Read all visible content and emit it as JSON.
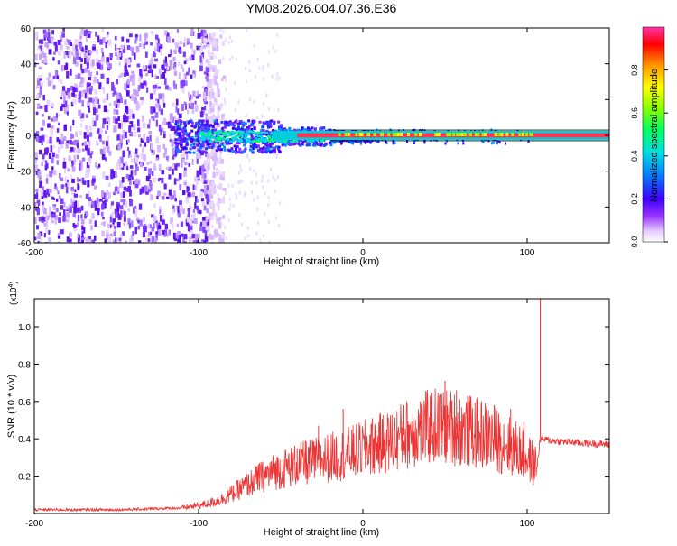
{
  "title": "YM08.2026.004.07.36.E36",
  "chart_data": [
    {
      "type": "heatmap",
      "xlabel": "Height of straight line (km)",
      "ylabel": "Frequency (Hz)",
      "xlim": [
        -200,
        150
      ],
      "ylim": [
        -60,
        60
      ],
      "x_ticks": [
        -200,
        -100,
        0,
        100
      ],
      "y_ticks": [
        -60,
        -40,
        -20,
        0,
        20,
        40,
        60
      ],
      "colorbar": {
        "label": "Normalized spectral amplitude",
        "range": [
          0,
          1
        ],
        "ticks": [
          0.0,
          0.2,
          0.4,
          0.6,
          0.8
        ]
      }
    },
    {
      "type": "line",
      "xlabel": "Height of straight line (km)",
      "ylabel": "SNR (10 * v/v)",
      "y_exponent_label": "(x10",
      "y_exponent_sup": "4",
      "y_exponent_close": ")",
      "xlim": [
        -200,
        150
      ],
      "ylim": [
        0,
        1.15
      ],
      "x_ticks": [
        -200,
        -100,
        0,
        100
      ],
      "y_ticks": [
        0.2,
        0.4,
        0.6,
        0.8,
        1.0
      ],
      "color": "#ee3333",
      "envelope": {
        "x": [
          -200,
          -150,
          -110,
          -95,
          -85,
          -75,
          -65,
          -55,
          -45,
          -35,
          -25,
          -15,
          -5,
          5,
          15,
          25,
          35,
          45,
          55,
          65,
          75,
          85,
          95,
          100,
          106,
          108,
          115,
          130,
          150
        ],
        "y": [
          0.02,
          0.02,
          0.03,
          0.05,
          0.08,
          0.13,
          0.18,
          0.22,
          0.25,
          0.27,
          0.29,
          0.31,
          0.33,
          0.36,
          0.38,
          0.42,
          0.45,
          0.47,
          0.46,
          0.44,
          0.42,
          0.38,
          0.34,
          0.3,
          0.25,
          0.4,
          0.39,
          0.38,
          0.37
        ]
      },
      "spikes": [
        {
          "x": -63,
          "y": 0.27
        },
        {
          "x": -40,
          "y": 0.35
        },
        {
          "x": -35,
          "y": 0.39
        },
        {
          "x": -27,
          "y": 0.47
        },
        {
          "x": -12,
          "y": 0.56
        },
        {
          "x": 5,
          "y": 0.48
        },
        {
          "x": 25,
          "y": 0.58
        },
        {
          "x": 35,
          "y": 0.6
        },
        {
          "x": 42,
          "y": 0.62
        },
        {
          "x": 50,
          "y": 0.71
        },
        {
          "x": 57,
          "y": 0.66
        },
        {
          "x": 65,
          "y": 0.6
        },
        {
          "x": 80,
          "y": 0.58
        },
        {
          "x": 90,
          "y": 0.56
        },
        {
          "x": 98,
          "y": 0.49
        },
        {
          "x": 108,
          "y": 1.15
        }
      ]
    }
  ]
}
